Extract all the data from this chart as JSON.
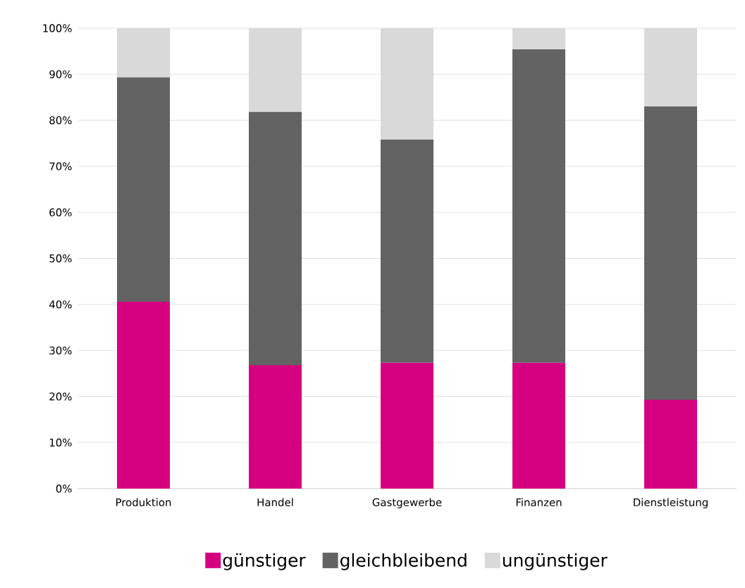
{
  "chart_data": {
    "type": "bar",
    "stacked": true,
    "categories": [
      "Produktion",
      "Handel",
      "Gastgewerbe",
      "Finanzen",
      "Dienstleistung"
    ],
    "series": [
      {
        "name": "günstiger",
        "color": "#d5007f",
        "values": [
          40.6,
          26.8,
          27.3,
          27.3,
          19.3
        ]
      },
      {
        "name": "gleichbleibend",
        "color": "#636363",
        "values": [
          48.7,
          55.0,
          48.5,
          68.1,
          63.7
        ]
      },
      {
        "name": "ungünstiger",
        "color": "#d9d9d9",
        "values": [
          10.7,
          18.2,
          24.2,
          4.6,
          17.0
        ]
      }
    ],
    "ylim": [
      0,
      100
    ],
    "yticks": [
      {
        "value": 0,
        "label": "0%"
      },
      {
        "value": 10,
        "label": "10%"
      },
      {
        "value": 20,
        "label": "20%"
      },
      {
        "value": 30,
        "label": "30%"
      },
      {
        "value": 40,
        "label": "40%"
      },
      {
        "value": 50,
        "label": "50%"
      },
      {
        "value": 60,
        "label": "60%"
      },
      {
        "value": 70,
        "label": "70%"
      },
      {
        "value": 80,
        "label": "80%"
      },
      {
        "value": 90,
        "label": "90%"
      },
      {
        "value": 100,
        "label": "100%"
      }
    ],
    "grid": "y",
    "legend": "bottom"
  }
}
